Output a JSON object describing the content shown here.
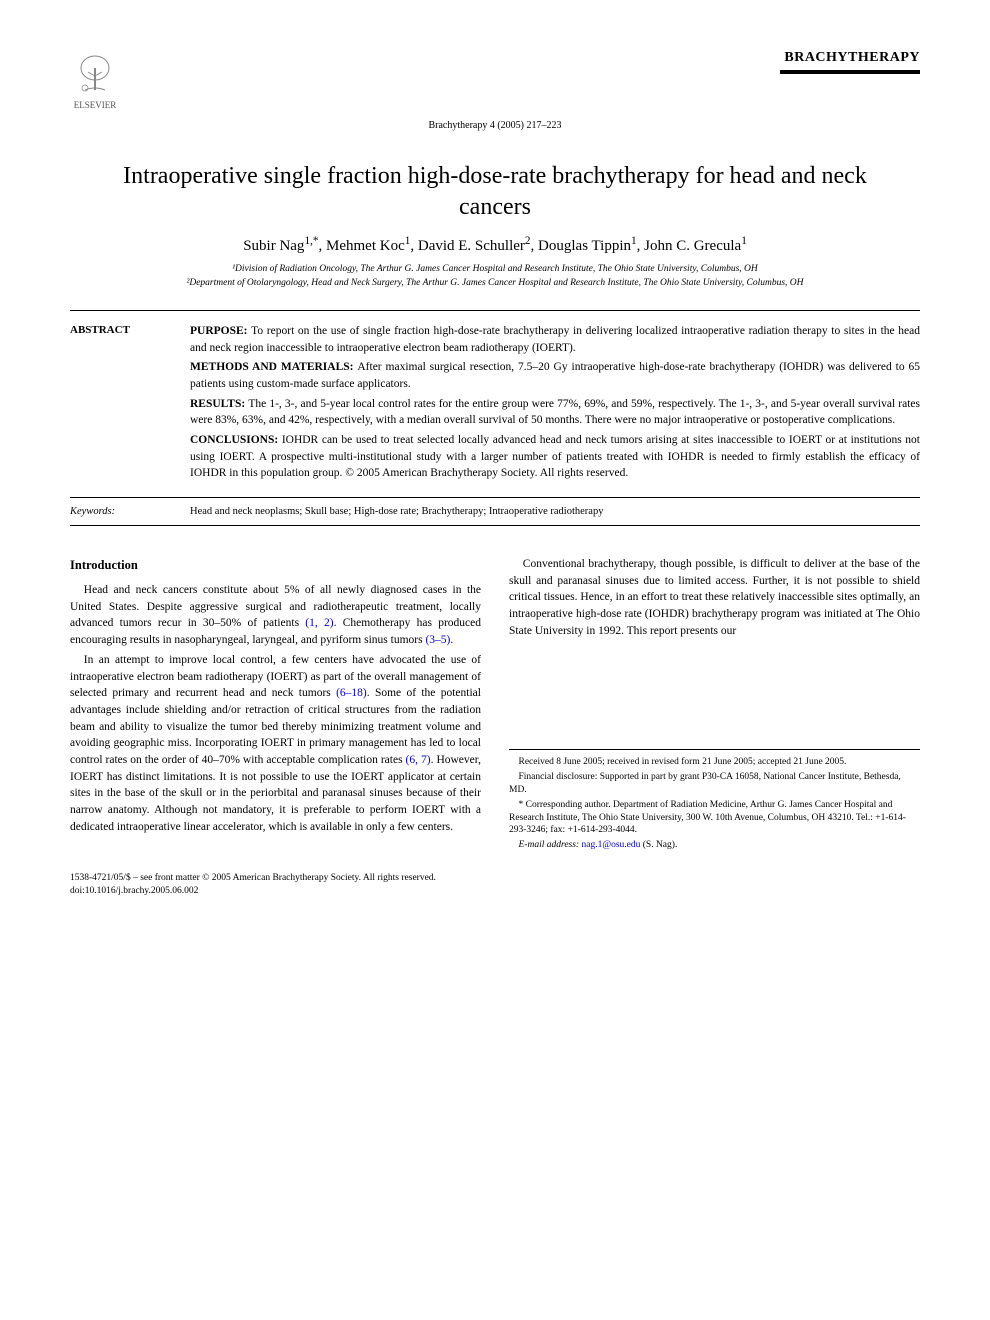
{
  "publisher": "ELSEVIER",
  "journal_name": "BRACHYTHERAPY",
  "citation": "Brachytherapy 4 (2005) 217–223",
  "title": "Intraoperative single fraction high-dose-rate brachytherapy for head and neck cancers",
  "authors_html": "Subir Nag<sup>1,*</sup>, Mehmet Koc<sup>1</sup>, David E. Schuller<sup>2</sup>, Douglas Tippin<sup>1</sup>, John C. Grecula<sup>1</sup>",
  "affiliations": [
    "¹Division of Radiation Oncology, The Arthur G. James Cancer Hospital and Research Institute, The Ohio State University, Columbus, OH",
    "²Department of Otolaryngology, Head and Neck Surgery, The Arthur G. James Cancer Hospital and Research Institute, The Ohio State University, Columbus, OH"
  ],
  "abstract": {
    "label": "ABSTRACT",
    "purpose": "To report on the use of single fraction high-dose-rate brachytherapy in delivering localized intraoperative radiation therapy to sites in the head and neck region inaccessible to intraoperative electron beam radiotherapy (IOERT).",
    "methods": "After maximal surgical resection, 7.5–20 Gy intraoperative high-dose-rate brachytherapy (IOHDR) was delivered to 65 patients using custom-made surface applicators.",
    "results": "The 1-, 3-, and 5-year local control rates for the entire group were 77%, 69%, and 59%, respectively. The 1-, 3-, and 5-year overall survival rates were 83%, 63%, and 42%, respectively, with a median overall survival of 50 months. There were no major intraoperative or postoperative complications.",
    "conclusions": "IOHDR can be used to treat selected locally advanced head and neck tumors arising at sites inaccessible to IOERT or at institutions not using IOERT. A prospective multi-institutional study with a larger number of patients treated with IOHDR is needed to firmly establish the efficacy of IOHDR in this population group.   © 2005 American Brachytherapy Society. All rights reserved."
  },
  "keywords": {
    "label": "Keywords:",
    "text": "Head and neck neoplasms; Skull base; High-dose rate; Brachytherapy; Intraoperative radiotherapy"
  },
  "introduction": {
    "heading": "Introduction",
    "p1_a": "Head and neck cancers constitute about 5% of all newly diagnosed cases in the United States. Despite aggressive surgical and radiotherapeutic treatment, locally advanced tumors recur in 30–50% of patients ",
    "p1_ref1": "(1, 2)",
    "p1_b": ". Chemotherapy has produced encouraging results in nasopharyngeal, laryngeal, and pyriform sinus tumors ",
    "p1_ref2": "(3–5)",
    "p1_c": ".",
    "p2_a": "In an attempt to improve local control, a few centers have advocated the use of intraoperative electron beam radiotherapy (IOERT) as part of the overall management of selected primary and recurrent head and neck tumors ",
    "p2_ref1": "(6–18)",
    "p2_b": ". Some of the potential advantages include shielding and/or retraction of critical structures from the radiation beam and ability to visualize the tumor bed thereby minimizing treatment volume and avoiding geographic miss. Incorporating IOERT in primary management has led to local control rates on the order of 40–70% with acceptable complication rates ",
    "p2_ref2": "(6, 7)",
    "p2_c": ". However, IOERT has distinct limitations. It is not possible to use the IOERT applicator at certain sites in the base of the skull or in the periorbital and paranasal sinuses because of their narrow anatomy. Although not mandatory, it is preferable to perform IOERT with a dedicated intraoperative linear accelerator, which is available in only a few centers.",
    "p3": "Conventional brachytherapy, though possible, is difficult to deliver at the base of the skull and paranasal sinuses due to limited access. Further, it is not possible to shield critical tissues. Hence, in an effort to treat these relatively inaccessible sites optimally, an intraoperative high-dose rate (IOHDR) brachytherapy program was initiated at The Ohio State University in 1992. This report presents our"
  },
  "footnotes": {
    "received": "Received 8 June 2005; received in revised form 21 June 2005; accepted 21 June 2005.",
    "disclosure": "Financial disclosure: Supported in part by grant P30-CA 16058, National Cancer Institute, Bethesda, MD.",
    "corresponding": "* Corresponding author. Department of Radiation Medicine, Arthur G. James Cancer Hospital and Research Institute, The Ohio State University, 300 W. 10th Avenue, Columbus, OH 43210. Tel.: +1-614-293-3246; fax: +1-614-293-4044.",
    "email_label": "E-mail address:",
    "email": "nag.1@osu.edu",
    "email_suffix": "(S. Nag)."
  },
  "footer": {
    "line1": "1538-4721/05/$ – see front matter © 2005 American Brachytherapy Society. All rights reserved.",
    "line2": "doi:10.1016/j.brachy.2005.06.002"
  },
  "colors": {
    "text": "#000000",
    "link": "#0000cc",
    "background": "#ffffff"
  }
}
